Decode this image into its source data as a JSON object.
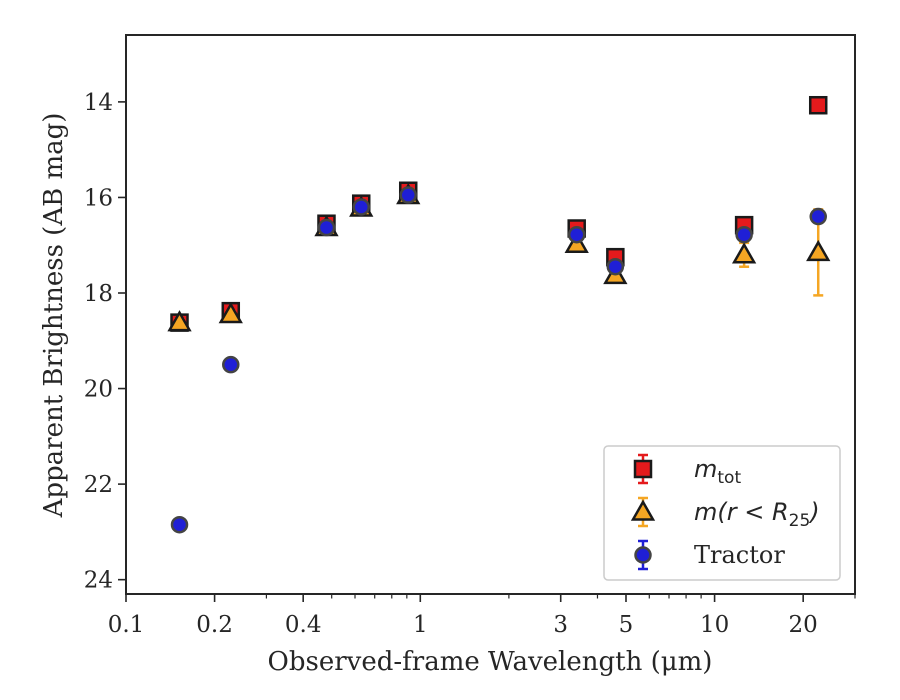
{
  "chart_data": {
    "type": "scatter",
    "title": "",
    "xlabel": "Observed-frame Wavelength (μm)",
    "ylabel": "Apparent Brightness (AB mag)",
    "xscale": "log",
    "xlim": [
      0.1,
      30
    ],
    "ylim": [
      24.3,
      12.6
    ],
    "y_inverted": true,
    "grid": false,
    "legend_position": "lower-right",
    "x_ticks": [
      {
        "value": 0.1,
        "label": "0.1"
      },
      {
        "value": 0.2,
        "label": "0.2"
      },
      {
        "value": 0.4,
        "label": "0.4"
      },
      {
        "value": 1,
        "label": "1"
      },
      {
        "value": 3,
        "label": "3"
      },
      {
        "value": 5,
        "label": "5"
      },
      {
        "value": 10,
        "label": "10"
      },
      {
        "value": 20,
        "label": "20"
      }
    ],
    "y_ticks": [
      {
        "value": 14,
        "label": "14"
      },
      {
        "value": 16,
        "label": "16"
      },
      {
        "value": 18,
        "label": "18"
      },
      {
        "value": 20,
        "label": "20"
      },
      {
        "value": 22,
        "label": "22"
      },
      {
        "value": 24,
        "label": "24"
      }
    ],
    "series": [
      {
        "name": "m_tot",
        "legend": {
          "main": "m",
          "sub": "tot"
        },
        "marker": "square",
        "color": "#e41a1c",
        "points": [
          {
            "x": 0.152,
            "y": 18.62,
            "err": 0.07
          },
          {
            "x": 0.227,
            "y": 18.38,
            "err": 0.07
          },
          {
            "x": 0.48,
            "y": 16.55,
            "err": 0.05
          },
          {
            "x": 0.63,
            "y": 16.13,
            "err": 0.05
          },
          {
            "x": 0.91,
            "y": 15.86,
            "err": 0.05
          },
          {
            "x": 3.4,
            "y": 16.65,
            "err": 0.05
          },
          {
            "x": 4.6,
            "y": 17.25,
            "err": 0.05
          },
          {
            "x": 12.6,
            "y": 16.58,
            "err": 0.05
          },
          {
            "x": 22.5,
            "y": 14.07,
            "err": 0.05
          }
        ]
      },
      {
        "name": "m(r < R25)",
        "legend": {
          "main": "m(r < R",
          "sub": "25",
          "end": ")"
        },
        "marker": "triangle",
        "color": "#f5a623",
        "points": [
          {
            "x": 0.152,
            "y": 18.62,
            "err": 0.07
          },
          {
            "x": 0.227,
            "y": 18.45,
            "err": 0.07
          },
          {
            "x": 0.48,
            "y": 16.63,
            "err": 0.05
          },
          {
            "x": 0.63,
            "y": 16.22,
            "err": 0.05
          },
          {
            "x": 0.91,
            "y": 15.96,
            "err": 0.05
          },
          {
            "x": 3.4,
            "y": 16.98,
            "err": 0.08
          },
          {
            "x": 4.6,
            "y": 17.63,
            "err": 0.08
          },
          {
            "x": 12.6,
            "y": 17.2,
            "err": 0.25
          },
          {
            "x": 22.5,
            "y": 17.15,
            "err": 0.9
          }
        ]
      },
      {
        "name": "Tractor",
        "legend": {
          "main": "Tractor"
        },
        "marker": "circle",
        "color": "#1f1fd6",
        "points": [
          {
            "x": 0.152,
            "y": 22.85,
            "err": 0.05
          },
          {
            "x": 0.227,
            "y": 19.5,
            "err": 0.05
          },
          {
            "x": 0.48,
            "y": 16.63,
            "err": 0.05
          },
          {
            "x": 0.63,
            "y": 16.2,
            "err": 0.05
          },
          {
            "x": 0.91,
            "y": 15.95,
            "err": 0.05
          },
          {
            "x": 3.4,
            "y": 16.78,
            "err": 0.05
          },
          {
            "x": 4.6,
            "y": 17.45,
            "err": 0.05
          },
          {
            "x": 12.6,
            "y": 16.78,
            "err": 0.1
          },
          {
            "x": 22.5,
            "y": 16.4,
            "err": 0.1
          }
        ]
      }
    ]
  }
}
